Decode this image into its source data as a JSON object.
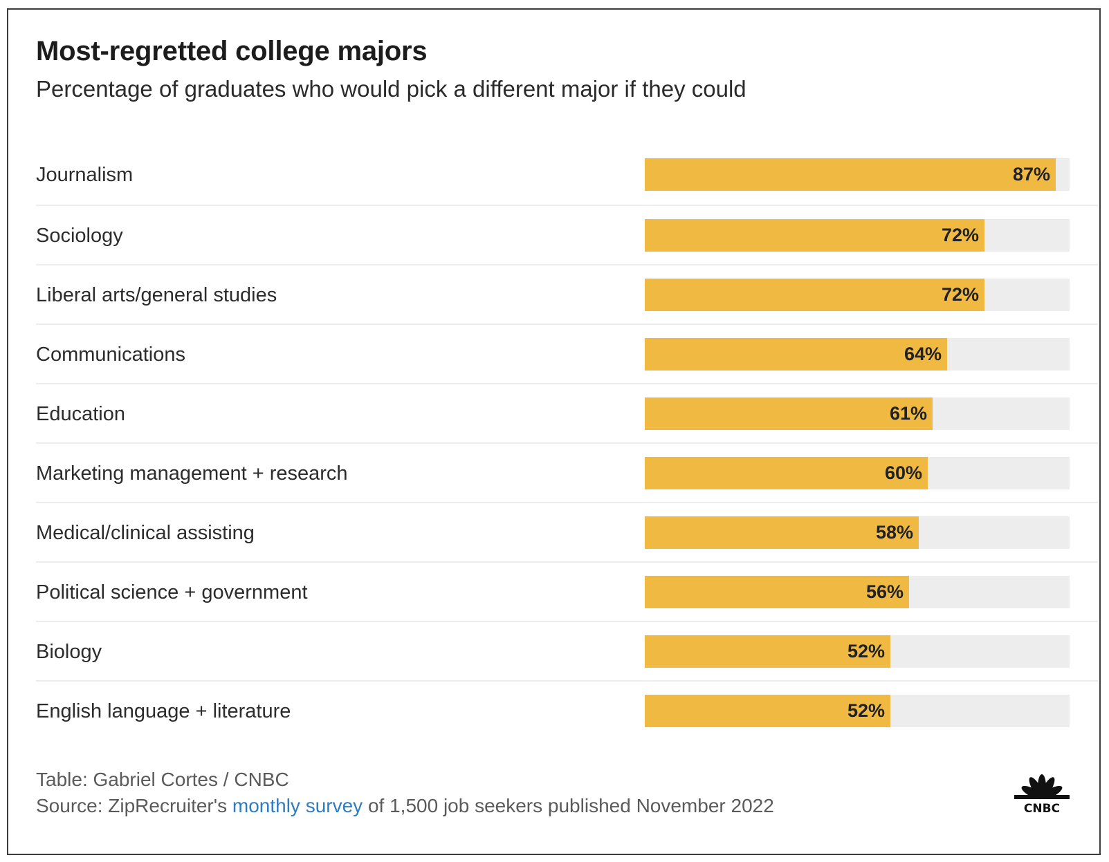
{
  "colors": {
    "bar_fill": "#f0b942",
    "bar_track": "#ededed",
    "link": "#2f7dc1"
  },
  "chart_data": {
    "type": "bar",
    "orientation": "horizontal",
    "title": "Most-regretted college majors",
    "subtitle": "Percentage of graduates who would pick a different major if they could",
    "categories": [
      "Journalism",
      "Sociology",
      "Liberal arts/general studies",
      "Communications",
      "Education",
      "Marketing management + research",
      "Medical/clinical assisting",
      "Political science + government",
      "Biology",
      "English language + literature"
    ],
    "values": [
      87,
      72,
      72,
      64,
      61,
      60,
      58,
      56,
      52,
      52
    ],
    "value_labels": [
      "87%",
      "72%",
      "72%",
      "64%",
      "61%",
      "60%",
      "58%",
      "56%",
      "52%",
      "52%"
    ],
    "xlim": [
      0,
      90
    ],
    "unit": "%"
  },
  "footer": {
    "credit": "Table: Gabriel Cortes / CNBC",
    "source_prefix": "Source: ZipRecruiter's ",
    "source_link": "monthly survey",
    "source_suffix": " of 1,500 job seekers published November 2022"
  },
  "logo": {
    "icon": "cnbc-peacock-icon",
    "text": "CNBC"
  }
}
